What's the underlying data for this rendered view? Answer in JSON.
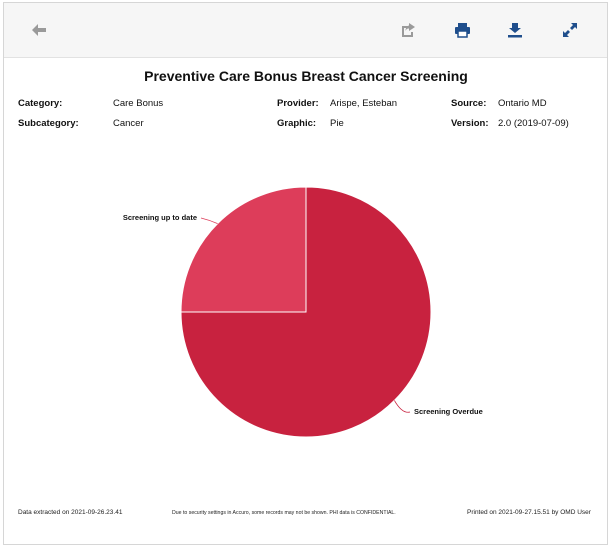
{
  "toolbar": {
    "back_icon": "arrow-left-icon",
    "share_icon": "share-icon",
    "print_icon": "printer-icon",
    "export_icon": "download-icon",
    "expand_icon": "expand-icon",
    "icon_color": "#1f4e8c",
    "back_color": "#9a9a9a"
  },
  "report": {
    "title": "Preventive Care Bonus Breast Cancer Screening",
    "category_label": "Category:",
    "category_value": "Care Bonus",
    "subcategory_label": "Subcategory:",
    "subcategory_value": "Cancer",
    "provider_label": "Provider:",
    "provider_value": "Arispe, Esteban",
    "graphic_label": "Graphic:",
    "graphic_value": "Pie",
    "source_label": "Source:",
    "source_value": "Ontario MD",
    "version_label": "Version:",
    "version_value": "2.0 (2019-07-09)"
  },
  "chart_data": {
    "type": "pie",
    "title": "",
    "slices": [
      {
        "label": "Screening Overdue",
        "value": 75,
        "color": "#c8223f"
      },
      {
        "label": "Screening up to date",
        "value": 25,
        "color": "#dd3d5a"
      }
    ]
  },
  "footer": {
    "extracted": "Data extracted on 2021-09-26.23.41",
    "notice": "Due to security settings in Accuro, some records may not be shown.  PHI data is CONFIDENTIAL.",
    "printed": "Printed on 2021-09-27.15.51 by OMD User"
  }
}
